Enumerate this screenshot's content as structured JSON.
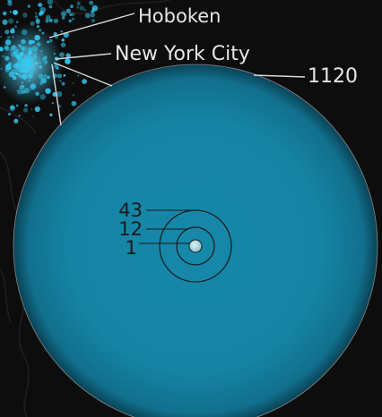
{
  "place_labels": {
    "hoboken": "Hoboken",
    "nyc": "New York City"
  },
  "bubble_labels": {
    "outer": "1120",
    "inner_a": "43",
    "inner_b": "12",
    "inner_c": "1"
  },
  "colors": {
    "background": "#0d0d0d",
    "big_bubble": "#1384a6",
    "dots": "#35c8f2",
    "label_light": "#e6e6e6",
    "label_dark": "#1a1a1a"
  }
}
